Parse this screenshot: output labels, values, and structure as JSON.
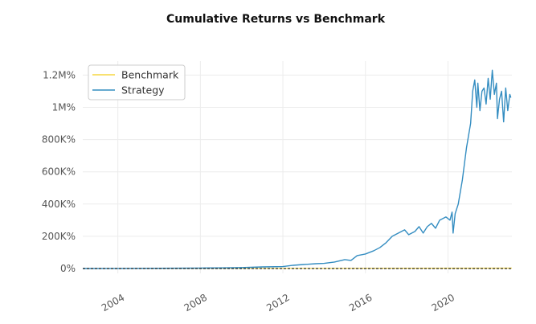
{
  "chart_data": {
    "type": "line",
    "title": "Cumulative Returns vs Benchmark",
    "xlabel": "",
    "ylabel": "",
    "xlim": [
      2002.3,
      2023.1
    ],
    "ylim": [
      -0.02,
      1.28
    ],
    "y_ticks": [
      {
        "value": 0.0,
        "label": "0%"
      },
      {
        "value": 0.2,
        "label": "200K%"
      },
      {
        "value": 0.4,
        "label": "400K%"
      },
      {
        "value": 0.6,
        "label": "600K%"
      },
      {
        "value": 0.8,
        "label": "800K%"
      },
      {
        "value": 1.0,
        "label": "1M%"
      },
      {
        "value": 1.2,
        "label": "1.2M%"
      }
    ],
    "x_ticks": [
      {
        "value": 2004,
        "label": "2004"
      },
      {
        "value": 2008,
        "label": "2008"
      },
      {
        "value": 2012,
        "label": "2012"
      },
      {
        "value": 2016,
        "label": "2016"
      },
      {
        "value": 2020,
        "label": "2020"
      }
    ],
    "grid": true,
    "legend_position": "top-left",
    "series": [
      {
        "name": "Benchmark",
        "color": "#f5d742",
        "x": [
          2002.3,
          2023.1
        ],
        "y": [
          0.0,
          0.003
        ]
      },
      {
        "name": "Strategy",
        "color": "#348dc1",
        "x": [
          2002.3,
          2004,
          2006,
          2008,
          2009,
          2010,
          2011,
          2012,
          2012.5,
          2013,
          2013.6,
          2014,
          2014.5,
          2015,
          2015.3,
          2015.6,
          2016,
          2016.4,
          2016.7,
          2017,
          2017.3,
          2017.6,
          2017.9,
          2018.1,
          2018.4,
          2018.6,
          2018.8,
          2019,
          2019.2,
          2019.4,
          2019.6,
          2019.9,
          2020.1,
          2020.2,
          2020.25,
          2020.35,
          2020.5,
          2020.7,
          2020.9,
          2021.1,
          2021.2,
          2021.3,
          2021.4,
          2021.45,
          2021.55,
          2021.65,
          2021.75,
          2021.85,
          2021.95,
          2022.05,
          2022.15,
          2022.25,
          2022.35,
          2022.4,
          2022.5,
          2022.6,
          2022.7,
          2022.8,
          2022.9,
          2023.0,
          2023.05
        ],
        "y": [
          0.0,
          0.0005,
          0.0015,
          0.003,
          0.004,
          0.006,
          0.01,
          0.012,
          0.02,
          0.025,
          0.03,
          0.032,
          0.04,
          0.055,
          0.05,
          0.08,
          0.09,
          0.11,
          0.13,
          0.16,
          0.2,
          0.22,
          0.24,
          0.21,
          0.23,
          0.26,
          0.22,
          0.26,
          0.28,
          0.25,
          0.3,
          0.32,
          0.3,
          0.35,
          0.22,
          0.34,
          0.4,
          0.55,
          0.75,
          0.9,
          1.1,
          1.17,
          1.0,
          1.15,
          0.98,
          1.1,
          1.12,
          1.02,
          1.18,
          1.05,
          1.23,
          1.08,
          1.15,
          0.93,
          1.05,
          1.1,
          0.91,
          1.12,
          0.98,
          1.08,
          1.06
        ]
      }
    ]
  }
}
